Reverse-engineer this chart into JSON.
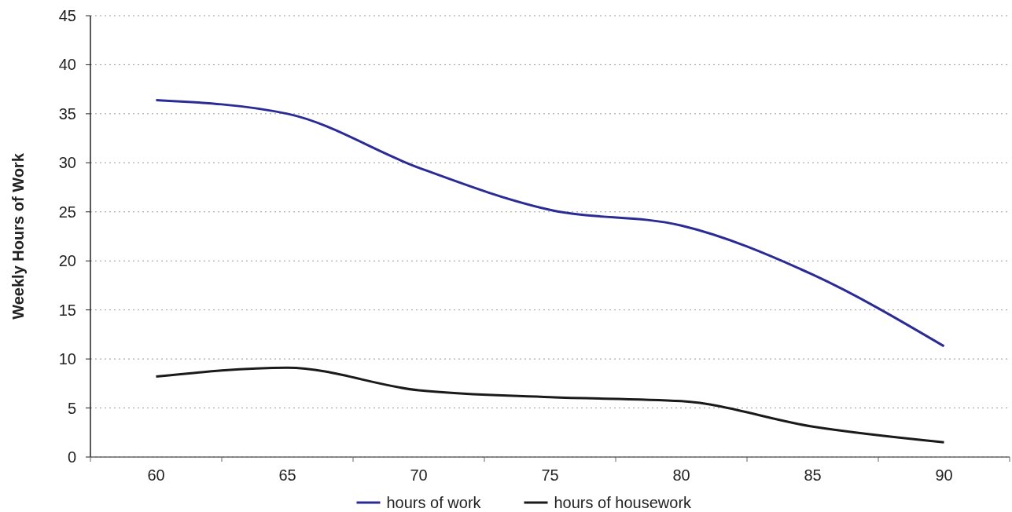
{
  "chart_data": {
    "type": "line",
    "ylabel": "Weekly Hours of Work",
    "categories": [
      "60",
      "65",
      "70",
      "75",
      "80",
      "85",
      "90"
    ],
    "series": [
      {
        "name": "hours of work",
        "color": "#2b2b96",
        "values": [
          36.4,
          35.0,
          29.5,
          25.2,
          23.6,
          18.6,
          11.3
        ]
      },
      {
        "name": "hours of housework",
        "color": "#1a1a1a",
        "values": [
          8.2,
          9.1,
          6.8,
          6.1,
          5.7,
          3.1,
          1.5
        ]
      }
    ],
    "ylim": [
      0,
      45
    ],
    "yticks": [
      0,
      5,
      10,
      15,
      20,
      25,
      30,
      35,
      40,
      45
    ],
    "grid": "y",
    "legend": "bottom",
    "marker": "none",
    "line_style": "solid"
  }
}
